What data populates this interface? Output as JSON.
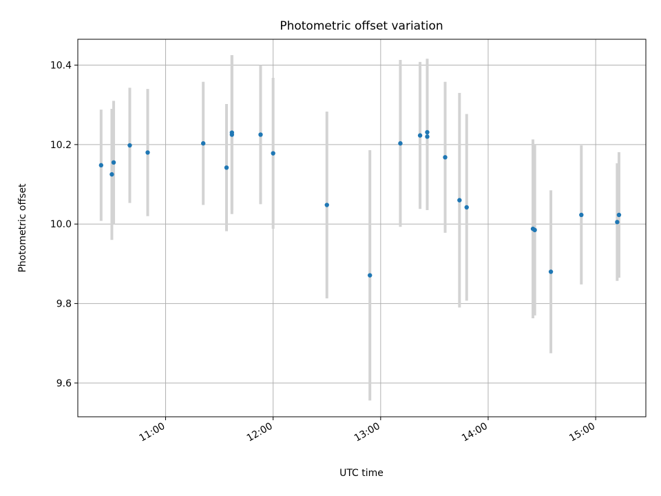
{
  "chart_data": {
    "type": "scatter",
    "title": "Photometric offset variation",
    "xlabel": "UTC time",
    "ylabel": "Photometric offset",
    "x_ticks": [
      "11:00",
      "12:00",
      "13:00",
      "14:00",
      "15:00"
    ],
    "y_ticks": [
      "9.6",
      "9.8",
      "10.0",
      "10.2",
      "10.4"
    ],
    "xlim": [
      "10:11",
      "15:28"
    ],
    "ylim": [
      9.515,
      10.465
    ],
    "grid": true,
    "marker_color": "#1f77b4",
    "errorbar_color": "#d3d3d3",
    "series": [
      {
        "points": [
          {
            "x": "10:24",
            "y": 10.148,
            "err": 0.14
          },
          {
            "x": "10:30",
            "y": 10.125,
            "err": 0.165
          },
          {
            "x": "10:31",
            "y": 10.155,
            "err": 0.155
          },
          {
            "x": "10:40",
            "y": 10.198,
            "err": 0.145
          },
          {
            "x": "10:50",
            "y": 10.18,
            "err": 0.16
          },
          {
            "x": "11:21",
            "y": 10.203,
            "err": 0.155
          },
          {
            "x": "11:34",
            "y": 10.142,
            "err": 0.16
          },
          {
            "x": "11:37",
            "y": 10.23,
            "err": 0.195
          },
          {
            "x": "11:37",
            "y": 10.225,
            "err": 0.2
          },
          {
            "x": "11:53",
            "y": 10.225,
            "err": 0.175
          },
          {
            "x": "12:00",
            "y": 10.178,
            "err": 0.19
          },
          {
            "x": "12:30",
            "y": 10.048,
            "err": 0.235
          },
          {
            "x": "12:54",
            "y": 9.871,
            "err": 0.315
          },
          {
            "x": "13:11",
            "y": 10.203,
            "err": 0.21
          },
          {
            "x": "13:22",
            "y": 10.223,
            "err": 0.185
          },
          {
            "x": "13:26",
            "y": 10.22,
            "err": 0.185
          },
          {
            "x": "13:26",
            "y": 10.231,
            "err": 0.185
          },
          {
            "x": "13:36",
            "y": 10.168,
            "err": 0.19
          },
          {
            "x": "13:44",
            "y": 10.06,
            "err": 0.27
          },
          {
            "x": "13:48",
            "y": 10.042,
            "err": 0.235
          },
          {
            "x": "14:25",
            "y": 9.988,
            "err": 0.225
          },
          {
            "x": "14:26",
            "y": 9.985,
            "err": 0.215
          },
          {
            "x": "14:35",
            "y": 9.88,
            "err": 0.205
          },
          {
            "x": "14:52",
            "y": 10.023,
            "err": 0.175
          },
          {
            "x": "15:12",
            "y": 10.005,
            "err": 0.148
          },
          {
            "x": "15:13",
            "y": 10.023,
            "err": 0.158
          }
        ]
      }
    ]
  }
}
